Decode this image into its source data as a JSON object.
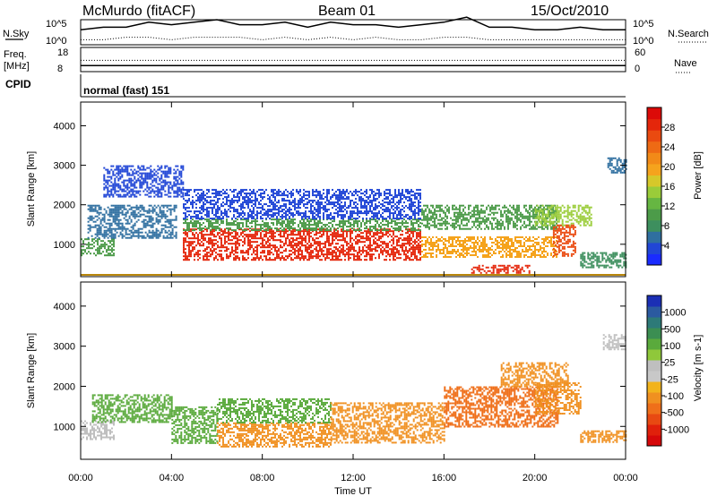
{
  "header": {
    "station": "McMurdo (fitACF)",
    "beam": "Beam 01",
    "date": "15/Oct/2010"
  },
  "aux_panels": {
    "nsky_label": "N.Sky",
    "nsearch_label": "N.Search",
    "noise_ticks": [
      "10^5",
      "10^0"
    ],
    "freq_label": "Freq.",
    "freq_unit": "[MHz]",
    "freq_ticks": [
      "18",
      "8"
    ],
    "nave_label": "Nave",
    "nave_ticks": [
      "60",
      "0"
    ],
    "cpid_label": "CPID",
    "cpid_value": "normal (fast) 151"
  },
  "colors": {
    "power_scale": [
      "#1a2bff",
      "#2146d6",
      "#2f6fa0",
      "#3d8f5e",
      "#4c9b49",
      "#66b642",
      "#9acc39",
      "#d6c82a",
      "#f5a31d",
      "#f28a18",
      "#ee6a14",
      "#ea4a10",
      "#e4260b",
      "#dc0a08"
    ],
    "velocity_scale": [
      "#1b2fb5",
      "#2b5aa0",
      "#2d7a78",
      "#3b8e52",
      "#5aaa3c",
      "#8fc83a",
      "#bfbfbf",
      "#c8c8c8",
      "#f2b31c",
      "#f09020",
      "#ef6f1a",
      "#e84912",
      "#e0200b",
      "#d6080a"
    ]
  },
  "chart_data": [
    {
      "type": "line",
      "title": "N.Sky / N.Search",
      "x": [
        0,
        1,
        2,
        3,
        4,
        5,
        6,
        7,
        8,
        9,
        10,
        11,
        12,
        13,
        14,
        15,
        16,
        17,
        18,
        19,
        20,
        21,
        22,
        23,
        24
      ],
      "series": [
        {
          "name": "N.Sky",
          "values": [
            0.6,
            0.7,
            0.7,
            0.9,
            0.8,
            0.9,
            1.0,
            0.8,
            0.8,
            0.9,
            0.7,
            0.9,
            0.8,
            0.8,
            0.7,
            0.8,
            0.9,
            1.1,
            0.7,
            0.7,
            0.6,
            0.6,
            0.7,
            0.6,
            0.6
          ]
        },
        {
          "name": "N.Search",
          "values": [
            0.2,
            0.2,
            0.3,
            0.3,
            0.2,
            0.3,
            0.3,
            0.3,
            0.2,
            0.3,
            0.2,
            0.3,
            0.2,
            0.3,
            0.2,
            0.2,
            0.3,
            0.3,
            0.2,
            0.2,
            0.2,
            0.2,
            0.2,
            0.2,
            0.2
          ]
        }
      ],
      "xlim": [
        0,
        24
      ],
      "ylim": [
        0,
        1
      ]
    },
    {
      "type": "line",
      "title": "Freq. / Nave",
      "x": [
        0,
        6,
        12,
        18,
        24
      ],
      "series": [
        {
          "name": "Freq.",
          "values": [
            10.5,
            10.5,
            10.5,
            10.5,
            10.5
          ]
        },
        {
          "name": "Nave",
          "values": [
            28,
            28,
            28,
            28,
            28
          ]
        }
      ],
      "xlim": [
        0,
        24
      ]
    },
    {
      "type": "heatmap",
      "title": "Power",
      "xlabel": "Time UT",
      "ylabel": "Slant Range [km]",
      "xlim": [
        0,
        24
      ],
      "ylim": [
        180,
        4600
      ],
      "x_ticks": [
        "00:00",
        "04:00",
        "08:00",
        "12:00",
        "16:00",
        "20:00",
        "00:00"
      ],
      "y_ticks": [
        1000,
        2000,
        3000,
        4000
      ],
      "colorbar": {
        "label": "Power [dB]",
        "ticks": [
          4,
          8,
          12,
          16,
          20,
          24,
          28
        ]
      },
      "bands": [
        {
          "t0": 0.0,
          "t1": 1.5,
          "r0": 700,
          "r1": 1150,
          "value": 10
        },
        {
          "t0": 0.3,
          "t1": 4.2,
          "r0": 1150,
          "r1": 2000,
          "value": 5
        },
        {
          "t0": 1.0,
          "t1": 4.5,
          "r0": 2200,
          "r1": 3000,
          "value": 4
        },
        {
          "t0": 4.5,
          "t1": 15.0,
          "r0": 600,
          "r1": 1400,
          "value": 26
        },
        {
          "t0": 4.5,
          "t1": 15.0,
          "r0": 1350,
          "r1": 1650,
          "value": 9
        },
        {
          "t0": 4.5,
          "t1": 15.0,
          "r0": 1650,
          "r1": 2400,
          "value": 4
        },
        {
          "t0": 15.0,
          "t1": 21.0,
          "r0": 700,
          "r1": 1200,
          "value": 18
        },
        {
          "t0": 15.0,
          "t1": 21.0,
          "r0": 1400,
          "r1": 2000,
          "value": 9
        },
        {
          "t0": 17.2,
          "t1": 19.8,
          "r0": 280,
          "r1": 480,
          "value": 27
        },
        {
          "t0": 20.0,
          "t1": 22.5,
          "r0": 1500,
          "r1": 2000,
          "value": 14
        },
        {
          "t0": 20.8,
          "t1": 21.8,
          "r0": 700,
          "r1": 1500,
          "value": 24
        },
        {
          "t0": 22.0,
          "t1": 24.0,
          "r0": 400,
          "r1": 800,
          "value": 7
        },
        {
          "t0": 23.2,
          "t1": 24.0,
          "r0": 2800,
          "r1": 3200,
          "value": 6
        }
      ]
    },
    {
      "type": "heatmap",
      "title": "Velocity",
      "xlabel": "Time UT",
      "ylabel": "Slant Range [km]",
      "xlim": [
        0,
        24
      ],
      "ylim": [
        180,
        4600
      ],
      "x_ticks": [
        "00:00",
        "04:00",
        "08:00",
        "12:00",
        "16:00",
        "20:00",
        "00:00"
      ],
      "y_ticks": [
        1000,
        2000,
        3000,
        4000
      ],
      "colorbar": {
        "label": "Velocity [m s-1]",
        "ticks": [
          1000,
          500,
          100,
          25,
          -25,
          -100,
          -500,
          -1000
        ]
      },
      "bands": [
        {
          "t0": 0.0,
          "t1": 1.5,
          "r0": 700,
          "r1": 1150,
          "value": 0
        },
        {
          "t0": 0.5,
          "t1": 4.0,
          "r0": 1100,
          "r1": 1800,
          "value": 80
        },
        {
          "t0": 4.0,
          "t1": 6.0,
          "r0": 600,
          "r1": 1500,
          "value": 90
        },
        {
          "t0": 6.0,
          "t1": 11.0,
          "r0": 500,
          "r1": 1100,
          "value": -250
        },
        {
          "t0": 6.0,
          "t1": 11.0,
          "r0": 1100,
          "r1": 1700,
          "value": 60
        },
        {
          "t0": 11.0,
          "t1": 16.0,
          "r0": 600,
          "r1": 1600,
          "value": -300
        },
        {
          "t0": 16.0,
          "t1": 21.0,
          "r0": 1000,
          "r1": 2000,
          "value": -350
        },
        {
          "t0": 18.5,
          "t1": 21.5,
          "r0": 2000,
          "r1": 2600,
          "value": -300
        },
        {
          "t0": 20.0,
          "t1": 22.0,
          "r0": 1300,
          "r1": 2100,
          "value": -200
        },
        {
          "t0": 22.0,
          "t1": 24.0,
          "r0": 600,
          "r1": 900,
          "value": -200
        },
        {
          "t0": 23.0,
          "t1": 24.0,
          "r0": 2900,
          "r1": 3300,
          "value": 0
        }
      ]
    }
  ]
}
